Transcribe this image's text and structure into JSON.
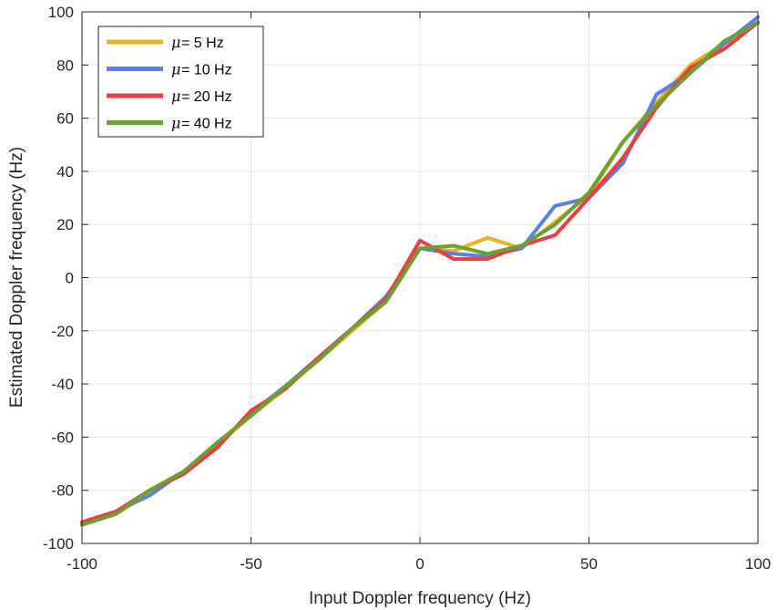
{
  "chart_data": {
    "type": "line",
    "title": "",
    "xlabel": "Input Doppler frequency (Hz)",
    "ylabel": "Estimated Doppler frequency (Hz)",
    "xlim": [
      -100,
      100
    ],
    "ylim": [
      -100,
      100
    ],
    "xticks": [
      -100,
      -50,
      0,
      50,
      100
    ],
    "yticks": [
      -100,
      -80,
      -60,
      -40,
      -20,
      0,
      20,
      40,
      60,
      80,
      100
    ],
    "grid": true,
    "legend_position": "top-left",
    "x": [
      -100,
      -90,
      -80,
      -70,
      -60,
      -50,
      -40,
      -30,
      -20,
      -10,
      0,
      10,
      20,
      30,
      40,
      50,
      60,
      70,
      80,
      90,
      100
    ],
    "series": [
      {
        "name_symbol": "μ",
        "name": " = 5 Hz",
        "color": "#EDB120",
        "values": [
          -93,
          -89,
          -81,
          -73,
          -63,
          -52,
          -42,
          -31,
          -20,
          -9,
          11,
          10,
          15,
          11,
          21,
          31,
          51,
          66,
          80,
          88,
          96
        ]
      },
      {
        "name_symbol": "μ",
        "name": " = 10 Hz",
        "color": "#5B7FE8",
        "values": [
          -92,
          -88,
          -82,
          -73,
          -63,
          -51,
          -41,
          -30,
          -19,
          -7,
          11,
          9,
          8,
          11,
          27,
          30,
          43,
          69,
          77,
          88,
          98
        ]
      },
      {
        "name_symbol": "μ",
        "name": " = 20 Hz",
        "color": "#E84040",
        "values": [
          -92,
          -88,
          -80,
          -74,
          -64,
          -50,
          -42,
          -30,
          -19,
          -8,
          14,
          7,
          7,
          12,
          16,
          30,
          45,
          64,
          79,
          86,
          96
        ]
      },
      {
        "name_symbol": "μ",
        "name": " = 40 Hz",
        "color": "#6BA132",
        "values": [
          -93,
          -89,
          -80,
          -73,
          -62,
          -52,
          -41,
          -31,
          -19,
          -9,
          11,
          12,
          9,
          12,
          20,
          32,
          51,
          65,
          77,
          89,
          96
        ]
      }
    ]
  }
}
